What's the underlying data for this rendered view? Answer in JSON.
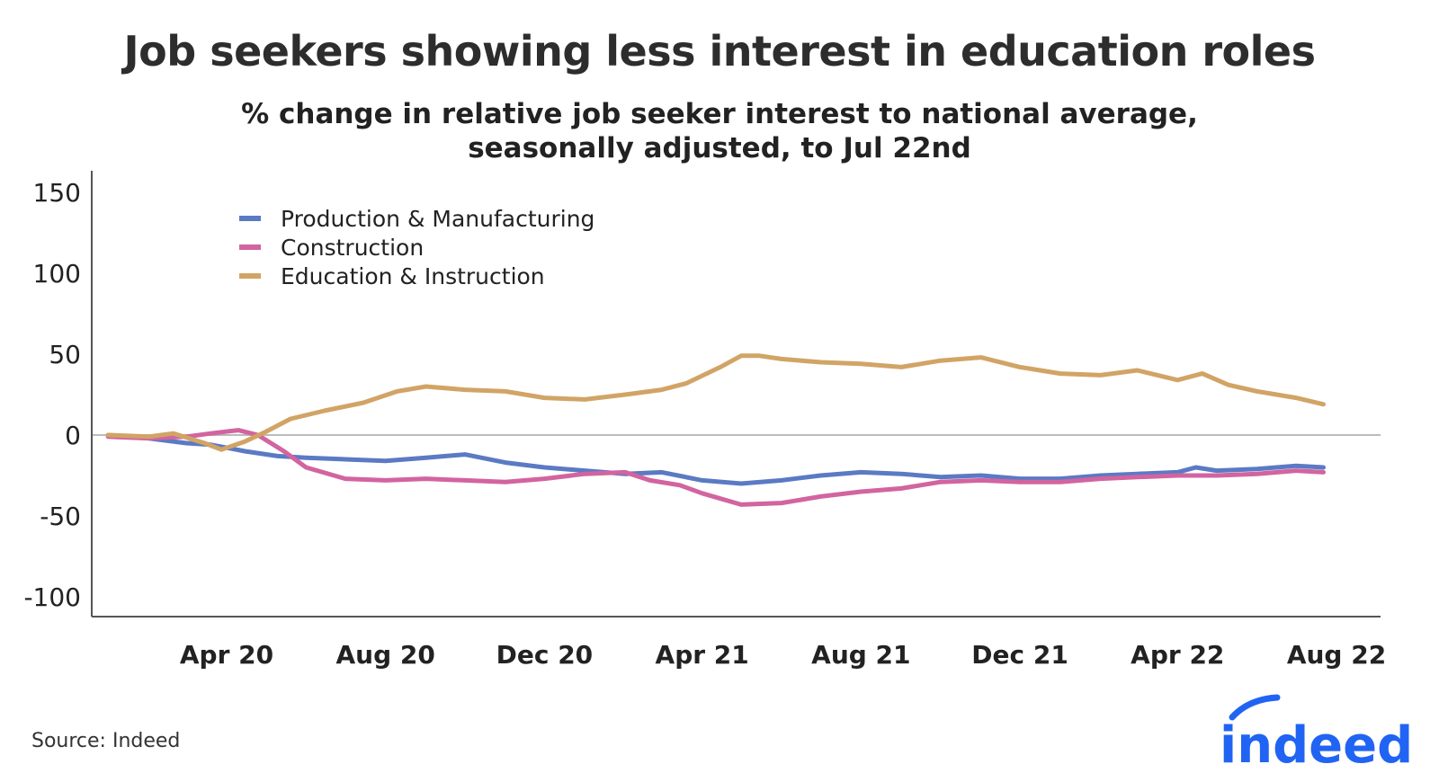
{
  "title": "Job seekers showing less interest in education roles",
  "subtitle_line1": "% change in relative job seeker interest to national average,",
  "subtitle_line2": "seasonally adjusted, to Jul 22nd",
  "source": "Source: Indeed",
  "logo_text": "indeed",
  "colors": {
    "production": "#5b7ac4",
    "construction": "#d264a0",
    "education": "#d1a466",
    "axis": "#555555",
    "zero_line": "#bbbbbb",
    "logo": "#2164f3"
  },
  "chart_data": {
    "type": "line",
    "ylim": [
      -110,
      160
    ],
    "yticks": [
      150,
      100,
      50,
      0,
      -50,
      -100
    ],
    "ytick_labels": [
      "150",
      "100",
      "50",
      "0",
      "-50",
      "-100"
    ],
    "x_start": "2020-01-01",
    "xlim": [
      "2019-12-01",
      "2022-08-10"
    ],
    "xticks": [
      "2020-04-01",
      "2020-08-01",
      "2020-12-01",
      "2021-04-01",
      "2021-08-01",
      "2021-12-01",
      "2022-04-01",
      "2022-08-01"
    ],
    "xtick_labels": [
      "Apr 20",
      "Aug 20",
      "Dec 20",
      "Apr 21",
      "Aug 21",
      "Dec 21",
      "Apr 22",
      "Aug 22"
    ],
    "legend_position": "top-left",
    "series": [
      {
        "name": "Production & Manufacturing",
        "color": "#5b7ac4",
        "points": [
          [
            "2020-01-01",
            0
          ],
          [
            "2020-02-01",
            -2
          ],
          [
            "2020-03-01",
            -5
          ],
          [
            "2020-03-20",
            -6
          ],
          [
            "2020-04-15",
            -10
          ],
          [
            "2020-05-10",
            -13
          ],
          [
            "2020-06-01",
            -14
          ],
          [
            "2020-07-01",
            -15
          ],
          [
            "2020-08-01",
            -16
          ],
          [
            "2020-09-01",
            -14
          ],
          [
            "2020-10-01",
            -12
          ],
          [
            "2020-11-01",
            -17
          ],
          [
            "2020-12-01",
            -20
          ],
          [
            "2021-01-01",
            -22
          ],
          [
            "2021-02-01",
            -24
          ],
          [
            "2021-03-01",
            -23
          ],
          [
            "2021-04-01",
            -28
          ],
          [
            "2021-05-01",
            -30
          ],
          [
            "2021-06-01",
            -28
          ],
          [
            "2021-07-01",
            -25
          ],
          [
            "2021-08-01",
            -23
          ],
          [
            "2021-09-01",
            -24
          ],
          [
            "2021-10-01",
            -26
          ],
          [
            "2021-11-01",
            -25
          ],
          [
            "2021-12-01",
            -27
          ],
          [
            "2022-01-01",
            -27
          ],
          [
            "2022-02-01",
            -25
          ],
          [
            "2022-03-01",
            -24
          ],
          [
            "2022-04-01",
            -23
          ],
          [
            "2022-04-15",
            -20
          ],
          [
            "2022-05-01",
            -22
          ],
          [
            "2022-06-01",
            -21
          ],
          [
            "2022-07-01",
            -19
          ],
          [
            "2022-07-22",
            -20
          ]
        ]
      },
      {
        "name": "Construction",
        "color": "#d264a0",
        "points": [
          [
            "2020-01-01",
            -1
          ],
          [
            "2020-02-01",
            -2
          ],
          [
            "2020-03-01",
            -1
          ],
          [
            "2020-03-20",
            1
          ],
          [
            "2020-04-10",
            3
          ],
          [
            "2020-04-25",
            0
          ],
          [
            "2020-05-15",
            -10
          ],
          [
            "2020-06-01",
            -20
          ],
          [
            "2020-07-01",
            -27
          ],
          [
            "2020-08-01",
            -28
          ],
          [
            "2020-09-01",
            -27
          ],
          [
            "2020-10-01",
            -28
          ],
          [
            "2020-11-01",
            -29
          ],
          [
            "2020-12-01",
            -27
          ],
          [
            "2021-01-01",
            -24
          ],
          [
            "2021-02-01",
            -23
          ],
          [
            "2021-02-20",
            -28
          ],
          [
            "2021-03-15",
            -31
          ],
          [
            "2021-04-01",
            -36
          ],
          [
            "2021-05-01",
            -43
          ],
          [
            "2021-06-01",
            -42
          ],
          [
            "2021-07-01",
            -38
          ],
          [
            "2021-08-01",
            -35
          ],
          [
            "2021-09-01",
            -33
          ],
          [
            "2021-10-01",
            -29
          ],
          [
            "2021-11-01",
            -28
          ],
          [
            "2021-12-01",
            -29
          ],
          [
            "2022-01-01",
            -29
          ],
          [
            "2022-02-01",
            -27
          ],
          [
            "2022-03-01",
            -26
          ],
          [
            "2022-04-01",
            -25
          ],
          [
            "2022-05-01",
            -25
          ],
          [
            "2022-06-01",
            -24
          ],
          [
            "2022-07-01",
            -22
          ],
          [
            "2022-07-22",
            -23
          ]
        ]
      },
      {
        "name": "Education & Instruction",
        "color": "#d1a466",
        "points": [
          [
            "2020-01-01",
            0
          ],
          [
            "2020-02-01",
            -1
          ],
          [
            "2020-02-20",
            1
          ],
          [
            "2020-03-15",
            -5
          ],
          [
            "2020-03-28",
            -9
          ],
          [
            "2020-04-15",
            -4
          ],
          [
            "2020-05-01",
            2
          ],
          [
            "2020-05-20",
            10
          ],
          [
            "2020-06-15",
            15
          ],
          [
            "2020-07-15",
            20
          ],
          [
            "2020-08-10",
            27
          ],
          [
            "2020-09-01",
            30
          ],
          [
            "2020-10-01",
            28
          ],
          [
            "2020-11-01",
            27
          ],
          [
            "2020-12-01",
            23
          ],
          [
            "2021-01-01",
            22
          ],
          [
            "2021-02-01",
            25
          ],
          [
            "2021-03-01",
            28
          ],
          [
            "2021-03-20",
            32
          ],
          [
            "2021-04-15",
            42
          ],
          [
            "2021-05-01",
            49
          ],
          [
            "2021-05-15",
            49
          ],
          [
            "2021-06-01",
            47
          ],
          [
            "2021-07-01",
            45
          ],
          [
            "2021-08-01",
            44
          ],
          [
            "2021-09-01",
            42
          ],
          [
            "2021-10-01",
            46
          ],
          [
            "2021-11-01",
            48
          ],
          [
            "2021-12-01",
            42
          ],
          [
            "2022-01-01",
            38
          ],
          [
            "2022-02-01",
            37
          ],
          [
            "2022-03-01",
            40
          ],
          [
            "2022-04-01",
            34
          ],
          [
            "2022-04-20",
            38
          ],
          [
            "2022-05-10",
            31
          ],
          [
            "2022-06-01",
            27
          ],
          [
            "2022-07-01",
            23
          ],
          [
            "2022-07-22",
            19
          ]
        ]
      }
    ]
  }
}
